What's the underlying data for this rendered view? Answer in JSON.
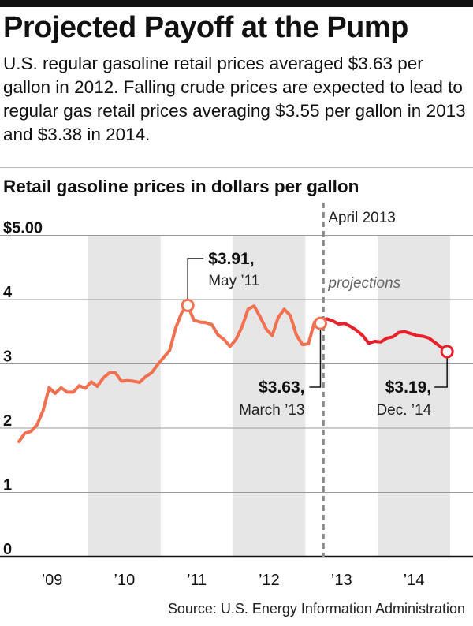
{
  "header": {
    "title": "Projected Payoff at the Pump",
    "subtitle": "U.S. regular gasoline retail prices averaged $3.63 per gallon in 2012. Falling crude prices are expected to lead to regular gas retail prices averaging $3.55 per gallon in 2013 and $3.38 in 2014."
  },
  "footer": {
    "source": "Source: U.S. Energy Information Administration"
  },
  "chart_data": {
    "type": "line",
    "title": "Retail gasoline prices in dollars per gallon",
    "xlabel": "",
    "ylabel": "",
    "ylim": [
      0,
      5
    ],
    "y_ticks": [
      0,
      1,
      2,
      3,
      4,
      5
    ],
    "y_tick_labels": [
      "0",
      "1",
      "2",
      "3",
      "4",
      "$5.00"
    ],
    "x_tick_labels": [
      "’09",
      "’10",
      "’11",
      "’12",
      "’13",
      "’14"
    ],
    "grid": true,
    "shaded_years": [
      "2010",
      "2012",
      "2014"
    ],
    "divider_label": "April 2013",
    "projection_label": "projections",
    "colors": {
      "historical": "#f07050",
      "projection": "#e8202a",
      "shading": "#e6e6e6",
      "grid": "#9a9a9a",
      "divider": "#8a8a8a"
    },
    "series": [
      {
        "role": "historical",
        "x": [
          "2009-01",
          "2009-02",
          "2009-03",
          "2009-04",
          "2009-05",
          "2009-06",
          "2009-07",
          "2009-08",
          "2009-09",
          "2009-10",
          "2009-11",
          "2009-12",
          "2010-01",
          "2010-02",
          "2010-03",
          "2010-04",
          "2010-05",
          "2010-06",
          "2010-07",
          "2010-08",
          "2010-09",
          "2010-10",
          "2010-11",
          "2010-12",
          "2011-01",
          "2011-02",
          "2011-03",
          "2011-04",
          "2011-05",
          "2011-06",
          "2011-07",
          "2011-08",
          "2011-09",
          "2011-10",
          "2011-11",
          "2011-12",
          "2012-01",
          "2012-02",
          "2012-03",
          "2012-04",
          "2012-05",
          "2012-06",
          "2012-07",
          "2012-08",
          "2012-09",
          "2012-10",
          "2012-11",
          "2012-12",
          "2013-01",
          "2013-02",
          "2013-03"
        ],
        "values": [
          1.79,
          1.92,
          1.95,
          2.05,
          2.27,
          2.63,
          2.54,
          2.63,
          2.56,
          2.56,
          2.66,
          2.62,
          2.72,
          2.65,
          2.78,
          2.86,
          2.86,
          2.73,
          2.74,
          2.73,
          2.71,
          2.8,
          2.86,
          2.99,
          3.1,
          3.21,
          3.56,
          3.8,
          3.91,
          3.68,
          3.65,
          3.64,
          3.61,
          3.45,
          3.38,
          3.27,
          3.38,
          3.58,
          3.85,
          3.9,
          3.73,
          3.54,
          3.44,
          3.72,
          3.85,
          3.75,
          3.45,
          3.3,
          3.31,
          3.65,
          3.63
        ]
      },
      {
        "role": "projection",
        "x": [
          "2013-03",
          "2013-04",
          "2013-05",
          "2013-06",
          "2013-07",
          "2013-08",
          "2013-09",
          "2013-10",
          "2013-11",
          "2013-12",
          "2014-01",
          "2014-02",
          "2014-03",
          "2014-04",
          "2014-05",
          "2014-06",
          "2014-07",
          "2014-08",
          "2014-09",
          "2014-10",
          "2014-11",
          "2014-12"
        ],
        "values": [
          3.63,
          3.7,
          3.67,
          3.62,
          3.63,
          3.58,
          3.52,
          3.44,
          3.32,
          3.35,
          3.34,
          3.4,
          3.42,
          3.49,
          3.5,
          3.47,
          3.44,
          3.43,
          3.4,
          3.33,
          3.26,
          3.19
        ]
      }
    ],
    "annotations": [
      {
        "x": "2011-05",
        "value": 3.91,
        "label": "$3.91,",
        "sublabel": "May ’11"
      },
      {
        "x": "2013-03",
        "value": 3.63,
        "label": "$3.63,",
        "sublabel": "March ’13"
      },
      {
        "x": "2014-12",
        "value": 3.19,
        "label": "$3.19,",
        "sublabel": "Dec. ’14"
      }
    ]
  }
}
